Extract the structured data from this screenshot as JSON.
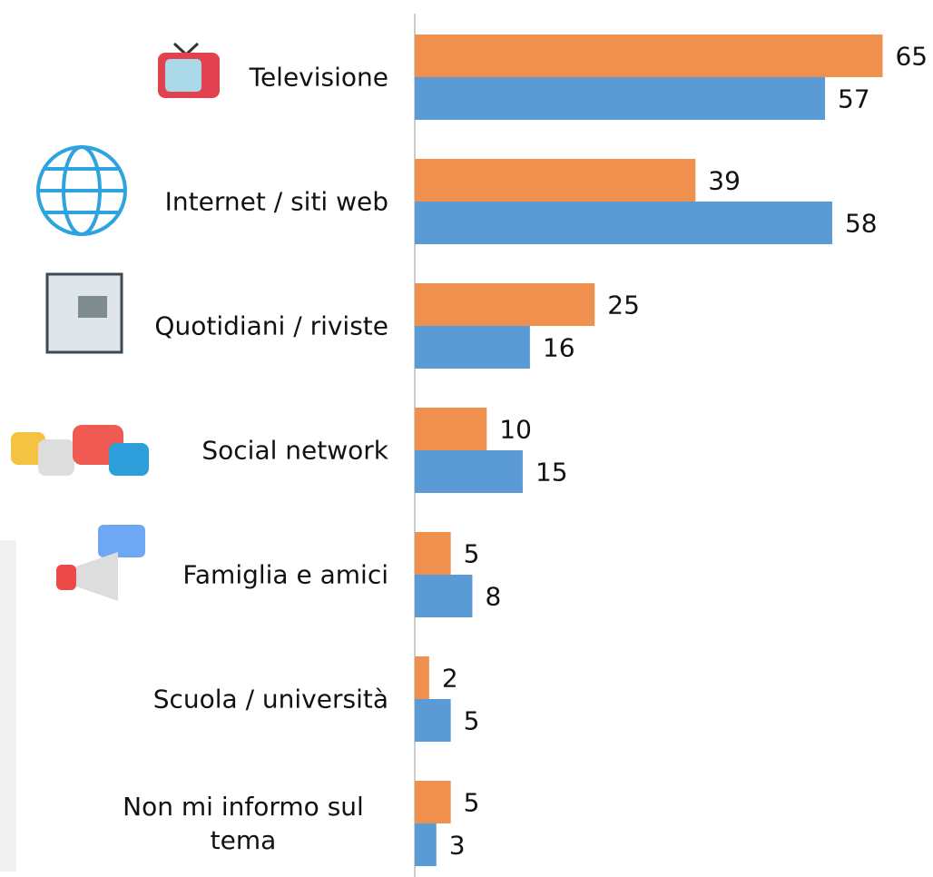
{
  "chart_data": {
    "type": "hbar",
    "categories": [
      "Televisione",
      "Internet / siti web",
      "Quotidiani / riviste",
      "Social network",
      "Famiglia e amici",
      "Scuola / università",
      "Non mi informo sul tema"
    ],
    "series": [
      {
        "color": "#F0904F",
        "values": [
          65,
          39,
          25,
          10,
          5,
          2,
          5
        ]
      },
      {
        "color": "#5B9BD5",
        "values": [
          57,
          58,
          16,
          15,
          8,
          5,
          3
        ]
      }
    ],
    "xlim": [
      0,
      72
    ]
  }
}
